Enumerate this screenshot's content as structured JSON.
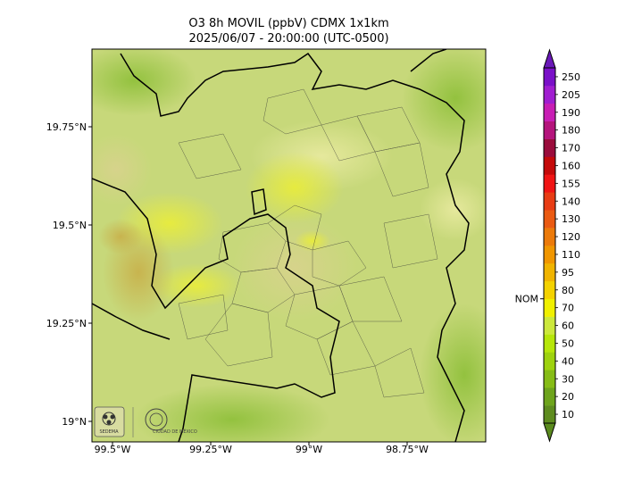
{
  "title": "O3 8h MOVIL (ppbV) CDMX 1x1km",
  "subtitle": "2025/06/07 - 20:00:00 (UTC-0500)",
  "lat_ticks": [
    "19.75°N",
    "19.5°N",
    "19.25°N",
    "19°N"
  ],
  "lon_ticks": [
    "99.5°W",
    "99.25°W",
    "99°W",
    "98.75°W"
  ],
  "colorbar": {
    "levels": [
      "10",
      "20",
      "30",
      "40",
      "50",
      "60",
      "70",
      "80",
      "95",
      "110",
      "120",
      "130",
      "140",
      "155",
      "160",
      "170",
      "180",
      "190",
      "205",
      "250"
    ],
    "colors": [
      "#5e8c1f",
      "#6ea41c",
      "#86bc16",
      "#9ed20e",
      "#b6e60a",
      "#cce83c",
      "#f0f000",
      "#f4d200",
      "#f0b400",
      "#f09600",
      "#ec7a0a",
      "#ea5a12",
      "#e83c14",
      "#f01414",
      "#c40a0a",
      "#9a0c3c",
      "#b4147c",
      "#c81eb4",
      "#a01ed0",
      "#7a10c8"
    ],
    "bottom_extend_color": "#5a8a1e",
    "top_extend_color": "#6a18b8",
    "threshold_label": "NOM",
    "threshold_value": 70
  },
  "map": {
    "background": "#c7d87a",
    "lon_range": [
      -99.55,
      -98.55
    ],
    "lat_range": [
      18.95,
      19.95
    ]
  },
  "logos": {
    "left": "SEDEMA",
    "right": "CIUDAD DE MÉXICO"
  }
}
